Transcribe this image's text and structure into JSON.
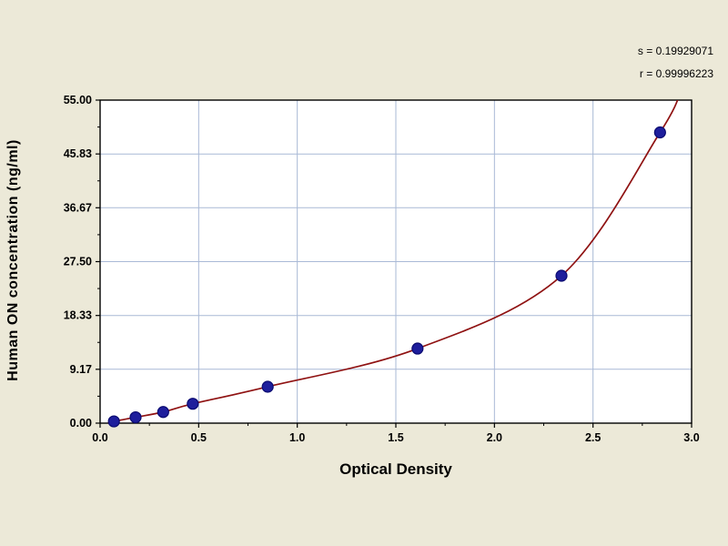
{
  "annotations": {
    "line1": "s = 0.19929071",
    "line2": "r = 0.99996223"
  },
  "colors": {
    "background": "#ece9d8",
    "plot_bg": "#ffffff",
    "grid": "#a9b9d6",
    "axis": "#000000",
    "curve": "#8f1212",
    "point_fill": "#1e1e9c",
    "point_stroke": "#0a0a70",
    "text": "#000000"
  },
  "chart_data": {
    "type": "scatter",
    "title": "",
    "xlabel": "Optical Density",
    "ylabel": "Human  ON concentration (ng/ml)",
    "xlim": [
      0.0,
      3.0
    ],
    "ylim": [
      0.0,
      55.0
    ],
    "x_ticks": [
      0.0,
      0.5,
      1.0,
      1.5,
      2.0,
      2.5,
      3.0
    ],
    "x_tick_labels": [
      "0.0",
      "0.5",
      "1.0",
      "1.5",
      "2.0",
      "2.5",
      "3.0"
    ],
    "y_ticks": [
      0.0,
      9.17,
      18.33,
      27.5,
      36.67,
      45.83,
      55.0
    ],
    "y_tick_labels": [
      "0.00",
      "9.17",
      "18.33",
      "27.50",
      "36.67",
      "45.83",
      "55.00"
    ],
    "grid": true,
    "legend": "none",
    "points": [
      {
        "x": 0.07,
        "y": 0.3
      },
      {
        "x": 0.18,
        "y": 1.0
      },
      {
        "x": 0.32,
        "y": 1.9
      },
      {
        "x": 0.47,
        "y": 3.3
      },
      {
        "x": 0.85,
        "y": 6.2
      },
      {
        "x": 1.61,
        "y": 12.7
      },
      {
        "x": 2.34,
        "y": 25.1
      },
      {
        "x": 2.84,
        "y": 49.5
      }
    ],
    "curve_anchors": {
      "start": {
        "x": 0.04,
        "y": 0.0
      },
      "end": {
        "x": 2.95,
        "y": 57.0
      }
    }
  }
}
